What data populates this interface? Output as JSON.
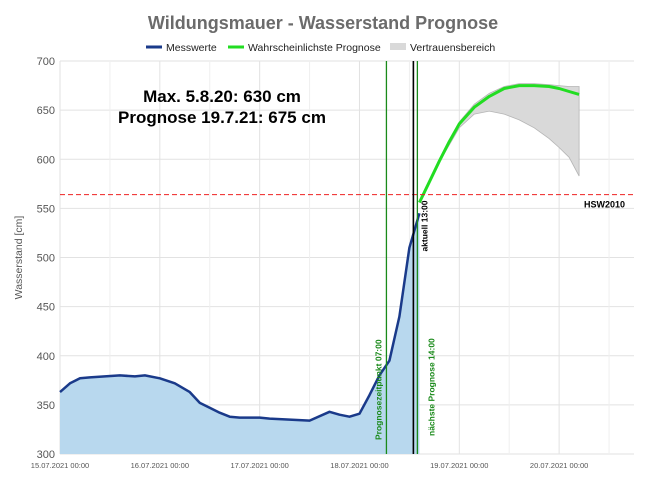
{
  "chart_data": {
    "type": "line",
    "title": "Wildungsmauer - Wasserstand Prognose",
    "ylabel": "Wasserstand [cm]",
    "xlabel": "",
    "ylim": [
      300,
      700
    ],
    "yticks": [
      300,
      350,
      400,
      450,
      500,
      550,
      600,
      650,
      700
    ],
    "xlim": [
      0,
      5.75
    ],
    "xticks": [
      {
        "x": 0,
        "label": "15.07.2021 00:00"
      },
      {
        "x": 1,
        "label": "16.07.2021 00:00"
      },
      {
        "x": 2,
        "label": "17.07.2021 00:00"
      },
      {
        "x": 3,
        "label": "18.07.2021 00:00"
      },
      {
        "x": 4,
        "label": "19.07.2021 00:00"
      },
      {
        "x": 5,
        "label": "20.07.2021 00:00"
      }
    ],
    "grid": true,
    "legend_position": "top",
    "legend": [
      {
        "label": "Messwerte",
        "color": "#1a3a8a",
        "kind": "line"
      },
      {
        "label": "Wahrscheinlichste Prognose",
        "color": "#22dd22",
        "kind": "line"
      },
      {
        "label": "Vertrauensbereich",
        "color": "#d9d9d9",
        "kind": "band"
      }
    ],
    "series": [
      {
        "name": "Messwerte",
        "color": "#1a3a8a",
        "fill": "#b8d8ee",
        "x": [
          0,
          0.1,
          0.2,
          0.3,
          0.45,
          0.6,
          0.75,
          0.85,
          1.0,
          1.15,
          1.3,
          1.4,
          1.5,
          1.6,
          1.7,
          1.8,
          1.9,
          2.0,
          2.1,
          2.3,
          2.5,
          2.7,
          2.8,
          2.9,
          3.0,
          3.1,
          3.2,
          3.3,
          3.4,
          3.5,
          3.6
        ],
        "y": [
          363,
          372,
          377,
          378,
          379,
          380,
          379,
          380,
          377,
          372,
          363,
          352,
          347,
          342,
          338,
          337,
          337,
          337,
          336,
          335,
          334,
          343,
          340,
          338,
          341,
          360,
          380,
          395,
          440,
          510,
          545
        ]
      },
      {
        "name": "Wahrscheinlichste Prognose",
        "color": "#22dd22",
        "x": [
          3.6,
          3.7,
          3.8,
          3.9,
          4.0,
          4.15,
          4.3,
          4.45,
          4.6,
          4.75,
          4.9,
          5.0,
          5.1,
          5.2
        ],
        "y": [
          556,
          577,
          598,
          618,
          636,
          653,
          664,
          672,
          675,
          675,
          674,
          672,
          669,
          666
        ]
      },
      {
        "name": "Vertrauensbereich",
        "color": "#d9d9d9",
        "x": [
          3.6,
          3.8,
          4.0,
          4.15,
          4.3,
          4.45,
          4.6,
          4.75,
          4.9,
          5.0,
          5.1,
          5.2
        ],
        "upper": [
          556,
          600,
          638,
          656,
          667,
          674,
          677,
          677,
          676,
          675,
          674,
          674
        ],
        "lower": [
          556,
          597,
          632,
          646,
          649,
          646,
          640,
          632,
          621,
          612,
          602,
          583
        ]
      }
    ],
    "hlines": [
      {
        "y": 564,
        "color": "#ee2222",
        "label": "HSW2010"
      }
    ],
    "vlines": [
      {
        "x": 3.27,
        "color": "#1a8a1a",
        "label": "Prognosezeitpunkt 07:00"
      },
      {
        "x": 3.54,
        "color": "#000000",
        "label": "aktuell 13:00"
      },
      {
        "x": 3.58,
        "color": "#1a8a1a",
        "label": "nächste Prognose 14:00"
      }
    ],
    "annotations": [
      "Max. 5.8.20: 630 cm",
      "Prognose 19.7.21: 675 cm"
    ]
  }
}
